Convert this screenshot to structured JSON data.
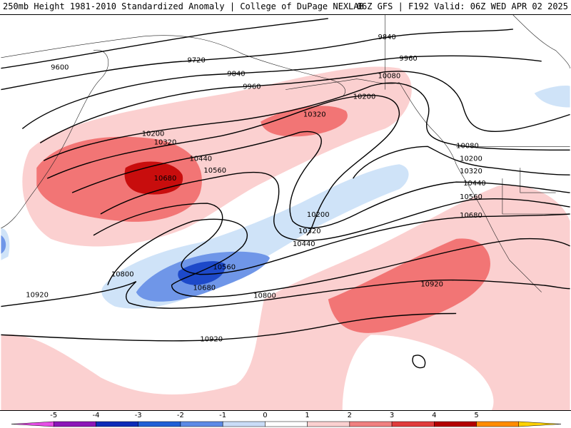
{
  "header": {
    "left_title": "250mb Height 1981-2010 Standardized Anomaly | College of DuPage NEXLAB",
    "right_title": "06Z GFS | F192 Valid: 06Z WED APR 02 2025"
  },
  "contour_labels": {
    "h9600": "9600",
    "h9720": "9720",
    "h9840a": "9840",
    "h9840b": "9840",
    "h9960a": "9960",
    "h9960b": "9960",
    "h10080a": "10080",
    "h10080b": "10080",
    "h10200a": "10200",
    "h10200b": "10200",
    "h10200c": "10200",
    "h10200d": "10200",
    "h10320a": "10320",
    "h10320b": "10320",
    "h10320c": "10320",
    "h10320d": "10320",
    "h10440a": "10440",
    "h10440b": "10440",
    "h10440c": "10440",
    "h10560a": "10560",
    "h10560b": "10560",
    "h10560c": "10560",
    "h10680a": "10680",
    "h10680b": "10680",
    "h10680c": "10680",
    "h10800a": "10800",
    "h10800b": "10800",
    "h10920a": "10920",
    "h10920b": "10920",
    "h10920c": "10920"
  },
  "colorbar": {
    "ticks": [
      "-5",
      "-4",
      "-3",
      "-2",
      "-1",
      "0",
      "1",
      "2",
      "3",
      "4",
      "5"
    ],
    "colors": [
      "#e64ee6",
      "#8c17b8",
      "#0d2bb8",
      "#1f5fd6",
      "#5c8ae6",
      "#c9dcf7",
      "#ffffff",
      "#fbd0d0",
      "#f08080",
      "#e03c3c",
      "#b30000",
      "#ff8c00",
      "#ffd200"
    ]
  },
  "palette": {
    "anom_pos1": "#fbd0d0",
    "anom_pos2": "#f27575",
    "anom_pos3": "#c80d0d",
    "anom_neg1": "#cfe3f8",
    "anom_neg2": "#6f96e8",
    "anom_neg3": "#1d49c9"
  }
}
